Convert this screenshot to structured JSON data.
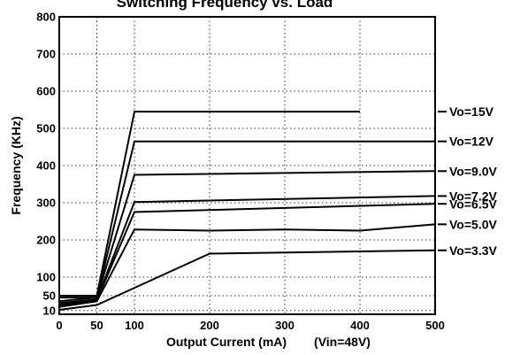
{
  "chart_data": {
    "type": "line",
    "title": "Switching Frequency vs. Load",
    "xlabel": "Output Current (mA)",
    "xnote": "(Vin=48V)",
    "ylabel": "Frequency (KHz)",
    "xlim": [
      0,
      500
    ],
    "ylim": [
      0,
      800
    ],
    "xticks": [
      "0",
      "50",
      "100",
      "200",
      "300",
      "400",
      "500"
    ],
    "xtick_values": [
      0,
      50,
      100,
      200,
      300,
      400,
      500
    ],
    "yticks": [
      "10",
      "50",
      "100",
      "200",
      "300",
      "400",
      "500",
      "600",
      "700",
      "800"
    ],
    "ytick_values": [
      10,
      50,
      100,
      200,
      300,
      400,
      500,
      600,
      700,
      800
    ],
    "grid": true,
    "line_color": "#000000",
    "series": [
      {
        "name": "Vo=15V",
        "label_y": 545,
        "points": [
          [
            0,
            50
          ],
          [
            50,
            50
          ],
          [
            100,
            545
          ],
          [
            400,
            545
          ]
        ]
      },
      {
        "name": "Vo=12V",
        "label_y": 465,
        "points": [
          [
            0,
            45
          ],
          [
            50,
            45
          ],
          [
            100,
            465
          ],
          [
            500,
            465
          ]
        ]
      },
      {
        "name": "Vo=9.0V",
        "label_y": 385,
        "points": [
          [
            0,
            35
          ],
          [
            50,
            45
          ],
          [
            100,
            375
          ],
          [
            500,
            385
          ]
        ]
      },
      {
        "name": "Vo=7.2V",
        "label_y": 318,
        "points": [
          [
            0,
            30
          ],
          [
            50,
            40
          ],
          [
            100,
            302
          ],
          [
            500,
            318
          ]
        ]
      },
      {
        "name": "Vo=6.5V",
        "label_y": 297,
        "points": [
          [
            0,
            25
          ],
          [
            50,
            38
          ],
          [
            100,
            275
          ],
          [
            500,
            297
          ]
        ]
      },
      {
        "name": "Vo=5.0V",
        "label_y": 242,
        "points": [
          [
            0,
            20
          ],
          [
            50,
            35
          ],
          [
            100,
            228
          ],
          [
            200,
            225
          ],
          [
            300,
            228
          ],
          [
            400,
            225
          ],
          [
            500,
            242
          ]
        ]
      },
      {
        "name": "Vo=3.3V",
        "label_y": 172,
        "points": [
          [
            0,
            12
          ],
          [
            50,
            25
          ],
          [
            200,
            163
          ],
          [
            500,
            172
          ]
        ]
      }
    ]
  }
}
